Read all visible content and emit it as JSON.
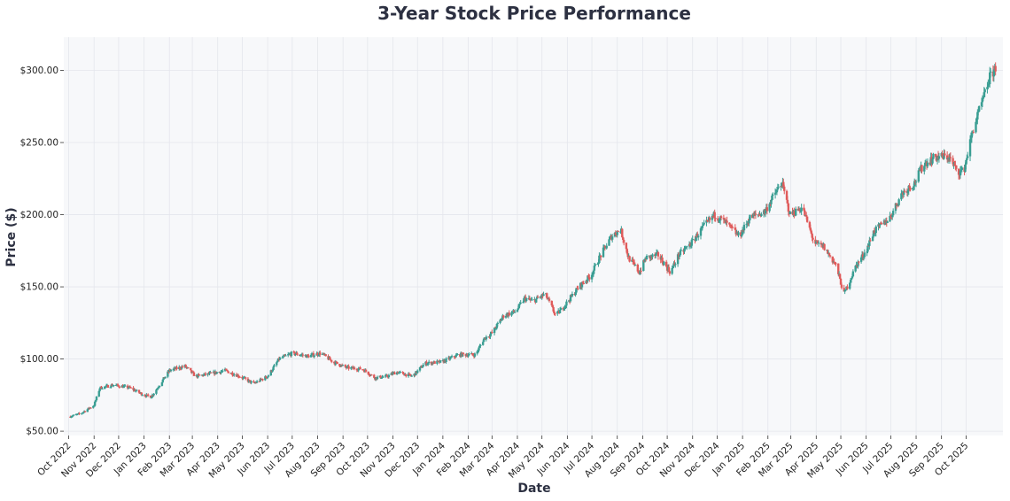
{
  "chart_data": {
    "type": "candlestick",
    "title": "3-Year Stock Price Performance",
    "xlabel": "Date",
    "ylabel": "Price ($)",
    "x_range": [
      "2022-09-25",
      "2025-11-15"
    ],
    "ylim": [
      47,
      323
    ],
    "yticks": [
      50,
      100,
      150,
      200,
      250,
      300
    ],
    "ytick_labels": [
      "$50.00",
      "$100.00",
      "$150.00",
      "$200.00",
      "$250.00",
      "$300.00"
    ],
    "xticks": [
      "2022-10-01",
      "2022-11-01",
      "2022-12-01",
      "2023-01-01",
      "2023-02-01",
      "2023-03-01",
      "2023-04-01",
      "2023-05-01",
      "2023-06-01",
      "2023-07-01",
      "2023-08-01",
      "2023-09-01",
      "2023-10-01",
      "2023-11-01",
      "2023-12-01",
      "2024-01-01",
      "2024-02-01",
      "2024-03-01",
      "2024-04-01",
      "2024-05-01",
      "2024-06-01",
      "2024-07-01",
      "2024-08-01",
      "2024-09-01",
      "2024-10-01",
      "2024-11-01",
      "2024-12-01",
      "2025-01-01",
      "2025-02-01",
      "2025-03-01",
      "2025-04-01",
      "2025-05-01",
      "2025-06-01",
      "2025-07-01",
      "2025-08-01",
      "2025-09-01",
      "2025-10-01"
    ],
    "xtick_labels": [
      "Oct 2022",
      "Nov 2022",
      "Dec 2022",
      "Jan 2023",
      "Feb 2023",
      "Mar 2023",
      "Apr 2023",
      "May 2023",
      "Jun 2023",
      "Jul 2023",
      "Aug 2023",
      "Sep 2023",
      "Oct 2023",
      "Nov 2023",
      "Dec 2023",
      "Jan 2024",
      "Feb 2024",
      "Mar 2024",
      "Apr 2024",
      "May 2024",
      "Jun 2024",
      "Jul 2024",
      "Aug 2024",
      "Sep 2024",
      "Oct 2024",
      "Nov 2024",
      "Dec 2024",
      "Jan 2025",
      "Feb 2025",
      "Mar 2025",
      "Apr 2025",
      "May 2025",
      "Jun 2025",
      "Jul 2025",
      "Aug 2025",
      "Sep 2025",
      "Oct 2025"
    ],
    "grid": true,
    "colors": {
      "up": "#3a9e93",
      "down": "#e05b5b",
      "plot_bg": "#f7f8fa",
      "text": "#2d3142"
    },
    "price_path": [
      [
        "2022-10-01",
        60
      ],
      [
        "2022-10-15",
        62
      ],
      [
        "2022-11-01",
        68
      ],
      [
        "2022-11-08",
        80
      ],
      [
        "2022-11-25",
        82
      ],
      [
        "2022-12-15",
        80
      ],
      [
        "2023-01-01",
        75
      ],
      [
        "2023-01-10",
        74
      ],
      [
        "2023-02-01",
        92
      ],
      [
        "2023-02-20",
        95
      ],
      [
        "2023-03-05",
        88
      ],
      [
        "2023-03-25",
        90
      ],
      [
        "2023-04-10",
        92
      ],
      [
        "2023-04-28",
        88
      ],
      [
        "2023-05-15",
        83
      ],
      [
        "2023-06-01",
        88
      ],
      [
        "2023-06-15",
        100
      ],
      [
        "2023-07-01",
        104
      ],
      [
        "2023-07-20",
        102
      ],
      [
        "2023-08-05",
        104
      ],
      [
        "2023-08-20",
        98
      ],
      [
        "2023-09-05",
        94
      ],
      [
        "2023-09-25",
        93
      ],
      [
        "2023-10-10",
        87
      ],
      [
        "2023-10-25",
        88
      ],
      [
        "2023-11-05",
        91
      ],
      [
        "2023-11-25",
        88
      ],
      [
        "2023-12-10",
        97
      ],
      [
        "2023-12-31",
        98
      ],
      [
        "2024-01-20",
        103
      ],
      [
        "2024-02-10",
        103
      ],
      [
        "2024-02-20",
        114
      ],
      [
        "2024-03-01",
        118
      ],
      [
        "2024-03-15",
        130
      ],
      [
        "2024-03-30",
        133
      ],
      [
        "2024-04-10",
        142
      ],
      [
        "2024-04-20",
        140
      ],
      [
        "2024-05-05",
        145
      ],
      [
        "2024-05-18",
        130
      ],
      [
        "2024-05-30",
        138
      ],
      [
        "2024-06-15",
        150
      ],
      [
        "2024-06-30",
        158
      ],
      [
        "2024-07-10",
        170
      ],
      [
        "2024-07-25",
        185
      ],
      [
        "2024-08-05",
        190
      ],
      [
        "2024-08-15",
        170
      ],
      [
        "2024-08-28",
        160
      ],
      [
        "2024-09-05",
        170
      ],
      [
        "2024-09-20",
        172
      ],
      [
        "2024-10-05",
        160
      ],
      [
        "2024-10-15",
        172
      ],
      [
        "2024-10-30",
        180
      ],
      [
        "2024-11-15",
        192
      ],
      [
        "2024-11-28",
        200
      ],
      [
        "2024-12-10",
        195
      ],
      [
        "2024-12-28",
        185
      ],
      [
        "2025-01-10",
        198
      ],
      [
        "2025-01-28",
        202
      ],
      [
        "2025-02-10",
        215
      ],
      [
        "2025-02-18",
        222
      ],
      [
        "2025-02-28",
        200
      ],
      [
        "2025-03-15",
        205
      ],
      [
        "2025-03-30",
        180
      ],
      [
        "2025-04-10",
        178
      ],
      [
        "2025-04-25",
        165
      ],
      [
        "2025-05-05",
        145
      ],
      [
        "2025-05-20",
        165
      ],
      [
        "2025-06-01",
        175
      ],
      [
        "2025-06-10",
        188
      ],
      [
        "2025-06-30",
        198
      ],
      [
        "2025-07-15",
        215
      ],
      [
        "2025-07-30",
        222
      ],
      [
        "2025-08-10",
        235
      ],
      [
        "2025-08-25",
        240
      ],
      [
        "2025-09-10",
        240
      ],
      [
        "2025-09-20",
        230
      ],
      [
        "2025-09-28",
        230
      ],
      [
        "2025-10-10",
        260
      ],
      [
        "2025-10-22",
        280
      ],
      [
        "2025-10-30",
        295
      ],
      [
        "2025-11-06",
        302
      ]
    ]
  }
}
